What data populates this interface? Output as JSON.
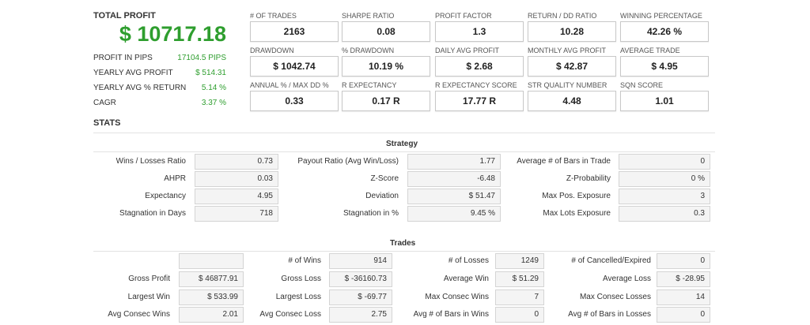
{
  "total_profit": {
    "title": "TOTAL PROFIT",
    "value": "$ 10717.18",
    "rows": [
      {
        "label": "PROFIT IN PIPS",
        "value": "17104.5 PIPS"
      },
      {
        "label": "YEARLY AVG PROFIT",
        "value": "$ 514.31"
      },
      {
        "label": "YEARLY AVG % RETURN",
        "value": "5.14 %"
      },
      {
        "label": "CAGR",
        "value": "3.37 %"
      }
    ]
  },
  "metrics": [
    {
      "label": "# OF TRADES",
      "value": "2163"
    },
    {
      "label": "SHARPE RATIO",
      "value": "0.08"
    },
    {
      "label": "PROFIT FACTOR",
      "value": "1.3"
    },
    {
      "label": "RETURN / DD RATIO",
      "value": "10.28"
    },
    {
      "label": "WINNING PERCENTAGE",
      "value": "42.26 %"
    },
    {
      "label": "DRAWDOWN",
      "value": "$ 1042.74"
    },
    {
      "label": "% DRAWDOWN",
      "value": "10.19 %"
    },
    {
      "label": "DAILY AVG PROFIT",
      "value": "$ 2.68"
    },
    {
      "label": "MONTHLY AVG PROFIT",
      "value": "$ 42.87"
    },
    {
      "label": "AVERAGE TRADE",
      "value": "$ 4.95"
    },
    {
      "label": "ANNUAL % / MAX DD %",
      "value": "0.33"
    },
    {
      "label": "R EXPECTANCY",
      "value": "0.17 R"
    },
    {
      "label": "R EXPECTANCY SCORE",
      "value": "17.77 R"
    },
    {
      "label": "STR QUALITY NUMBER",
      "value": "4.48"
    },
    {
      "label": "SQN SCORE",
      "value": "1.01"
    }
  ],
  "stats": {
    "title": "STATS",
    "strategy": {
      "title": "Strategy",
      "rows": [
        [
          {
            "label": "Wins / Losses Ratio",
            "value": "0.73"
          },
          {
            "label": "Payout Ratio (Avg Win/Loss)",
            "value": "1.77"
          },
          {
            "label": "Average # of Bars in Trade",
            "value": "0"
          }
        ],
        [
          {
            "label": "AHPR",
            "value": "0.03"
          },
          {
            "label": "Z-Score",
            "value": "-6.48"
          },
          {
            "label": "Z-Probability",
            "value": "0 %"
          }
        ],
        [
          {
            "label": "Expectancy",
            "value": "4.95"
          },
          {
            "label": "Deviation",
            "value": "$ 51.47"
          },
          {
            "label": "Max Pos. Exposure",
            "value": "3"
          }
        ],
        [
          {
            "label": "Stagnation in Days",
            "value": "718"
          },
          {
            "label": "Stagnation in %",
            "value": "9.45 %"
          },
          {
            "label": "Max Lots Exposure",
            "value": "0.3"
          }
        ]
      ]
    },
    "trades": {
      "title": "Trades",
      "rows": [
        [
          {
            "label": "",
            "value": ""
          },
          {
            "label": "# of Wins",
            "value": "914"
          },
          {
            "label": "# of Losses",
            "value": "1249"
          },
          {
            "label": "# of Cancelled/Expired",
            "value": "0"
          }
        ],
        [
          {
            "label": "Gross Profit",
            "value": "$ 46877.91"
          },
          {
            "label": "Gross Loss",
            "value": "$ -36160.73"
          },
          {
            "label": "Average Win",
            "value": "$ 51.29"
          },
          {
            "label": "Average Loss",
            "value": "$ -28.95"
          }
        ],
        [
          {
            "label": "Largest Win",
            "value": "$ 533.99"
          },
          {
            "label": "Largest Loss",
            "value": "$ -69.77"
          },
          {
            "label": "Max Consec Wins",
            "value": "7"
          },
          {
            "label": "Max Consec Losses",
            "value": "14"
          }
        ],
        [
          {
            "label": "Avg Consec Wins",
            "value": "2.01"
          },
          {
            "label": "Avg Consec Loss",
            "value": "2.75"
          },
          {
            "label": "Avg # of Bars in Wins",
            "value": "0"
          },
          {
            "label": "Avg # of Bars in Losses",
            "value": "0"
          }
        ]
      ]
    }
  }
}
